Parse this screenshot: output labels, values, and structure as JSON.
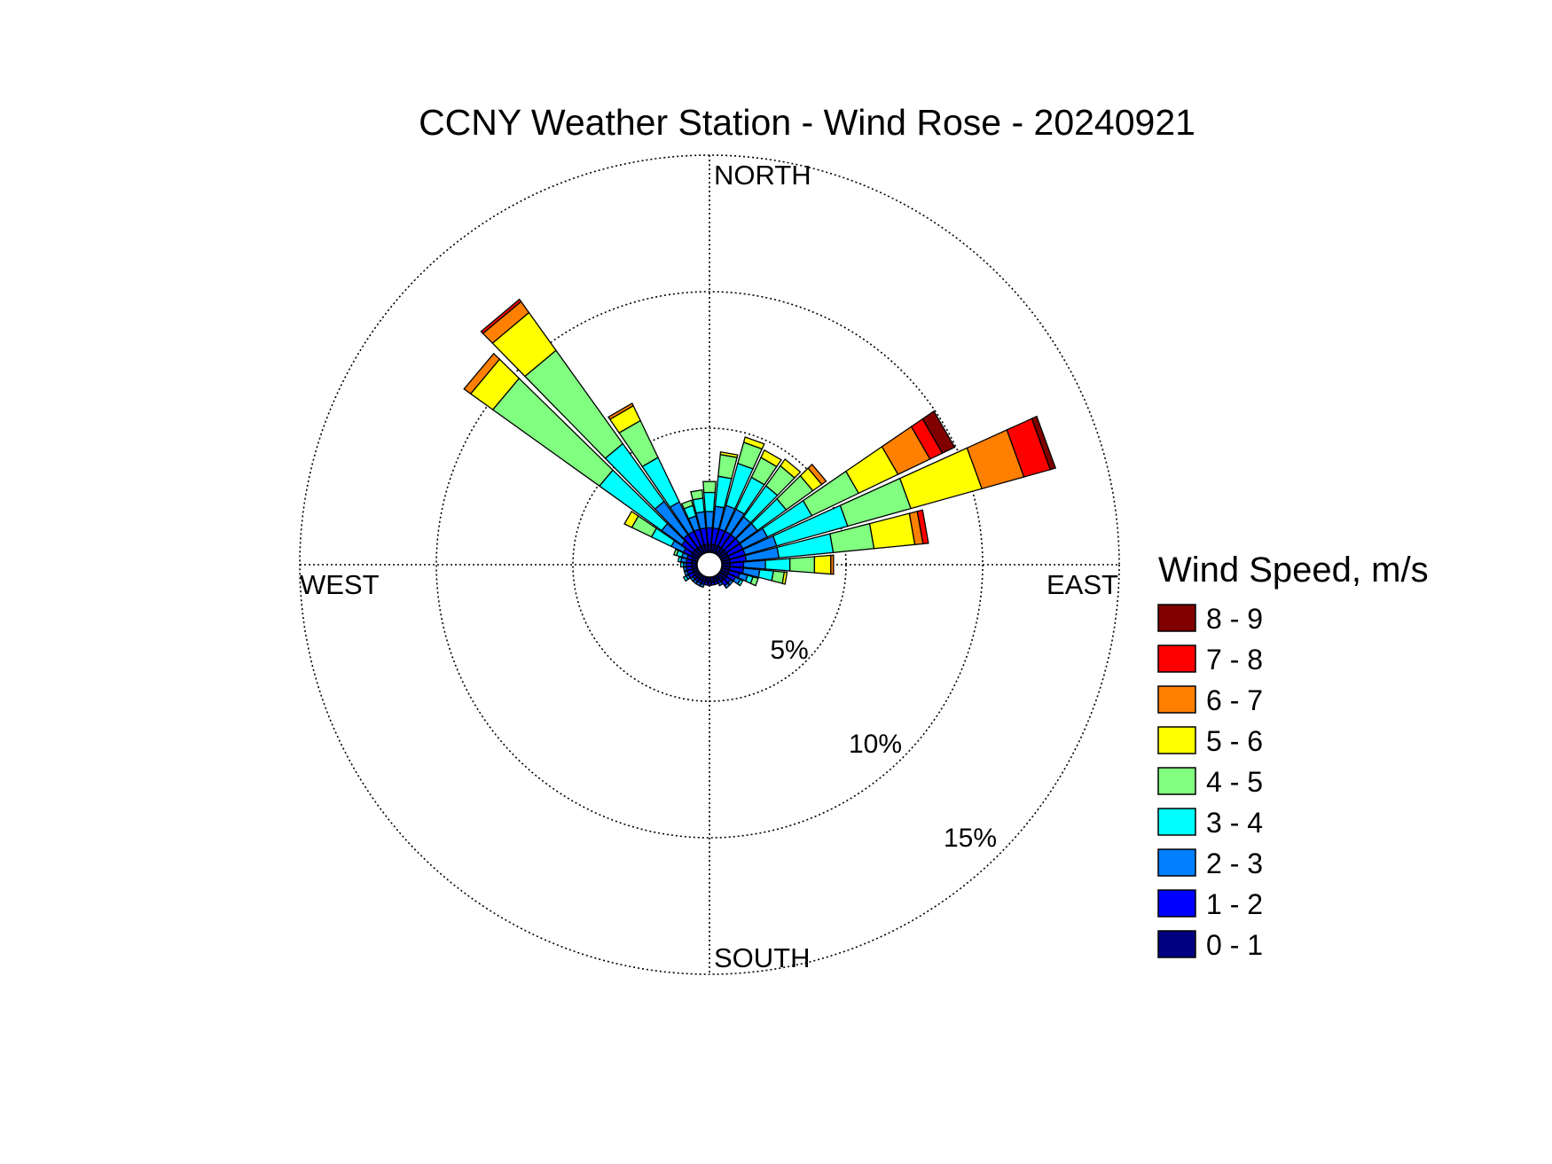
{
  "chart_data": {
    "type": "wind-rose",
    "title": "CCNY Weather Station - Wind Rose - 20240921",
    "directions": [
      "NORTH",
      "EAST",
      "SOUTH",
      "WEST"
    ],
    "ring_labels": [
      "5%",
      "10%",
      "15%"
    ],
    "rings": [
      5,
      10,
      15
    ],
    "rmax": 15,
    "legend": {
      "title": "Wind Speed, m/s",
      "bins": [
        {
          "label": "8 - 9",
          "color": "#800000"
        },
        {
          "label": "7 - 8",
          "color": "#ff0000"
        },
        {
          "label": "6 - 7",
          "color": "#ff8000"
        },
        {
          "label": "5 - 6",
          "color": "#ffff00"
        },
        {
          "label": "4 - 5",
          "color": "#80ff80"
        },
        {
          "label": "3 - 4",
          "color": "#00ffff"
        },
        {
          "label": "2 - 3",
          "color": "#0080ff"
        },
        {
          "label": "1 - 2",
          "color": "#0000ff"
        },
        {
          "label": "0 - 1",
          "color": "#000080"
        }
      ]
    },
    "sectors": [
      {
        "direction_deg": 0,
        "frequencies": [
          0.3,
          0.6,
          0.6,
          0.7,
          0.4,
          0.0,
          0.0,
          0.0,
          0.0
        ]
      },
      {
        "direction_deg": 10,
        "frequencies": [
          0.3,
          0.6,
          0.8,
          1.1,
          0.8,
          0.1,
          0.0,
          0.0,
          0.0
        ]
      },
      {
        "direction_deg": 20,
        "frequencies": [
          0.3,
          0.6,
          0.9,
          1.6,
          0.8,
          0.2,
          0.0,
          0.0,
          0.0
        ]
      },
      {
        "direction_deg": 30,
        "frequencies": [
          0.3,
          0.6,
          0.9,
          1.3,
          0.8,
          0.3,
          0.0,
          0.0,
          0.0
        ]
      },
      {
        "direction_deg": 40,
        "frequencies": [
          0.3,
          0.6,
          0.8,
          1.4,
          0.9,
          0.3,
          0.0,
          0.0,
          0.0
        ]
      },
      {
        "direction_deg": 50,
        "frequencies": [
          0.3,
          0.6,
          0.8,
          1.3,
          1.2,
          0.4,
          0.2,
          0.0,
          0.0
        ]
      },
      {
        "direction_deg": 60,
        "frequencies": [
          0.3,
          0.6,
          1.0,
          1.8,
          1.9,
          1.6,
          1.3,
          0.5,
          0.5
        ]
      },
      {
        "direction_deg": 70,
        "frequencies": [
          0.3,
          0.6,
          1.2,
          2.7,
          2.4,
          2.7,
          1.6,
          1.0,
          0.2
        ]
      },
      {
        "direction_deg": 80,
        "frequencies": [
          0.3,
          0.6,
          1.2,
          2.0,
          1.5,
          1.5,
          0.3,
          0.2,
          0.0
        ]
      },
      {
        "direction_deg": 90,
        "frequencies": [
          0.3,
          0.5,
          0.8,
          0.9,
          0.9,
          0.6,
          0.1,
          0.0,
          0.0
        ]
      },
      {
        "direction_deg": 100,
        "frequencies": [
          0.3,
          0.5,
          0.6,
          0.5,
          0.4,
          0.1,
          0.0,
          0.0,
          0.0
        ]
      },
      {
        "direction_deg": 110,
        "frequencies": [
          0.3,
          0.4,
          0.3,
          0.2,
          0.2,
          0.0,
          0.0,
          0.0,
          0.0
        ]
      },
      {
        "direction_deg": 120,
        "frequencies": [
          0.3,
          0.3,
          0.2,
          0.1,
          0.0,
          0.0,
          0.0,
          0.0,
          0.0
        ]
      },
      {
        "direction_deg": 130,
        "frequencies": [
          0.3,
          0.2,
          0.1,
          0.0,
          0.0,
          0.0,
          0.0,
          0.0,
          0.0
        ]
      },
      {
        "direction_deg": 140,
        "frequencies": [
          0.3,
          0.2,
          0.1,
          0.0,
          0.0,
          0.0,
          0.0,
          0.0,
          0.0
        ]
      },
      {
        "direction_deg": 150,
        "frequencies": [
          0.2,
          0.1,
          0.1,
          0.0,
          0.0,
          0.0,
          0.0,
          0.0,
          0.0
        ]
      },
      {
        "direction_deg": 160,
        "frequencies": [
          0.2,
          0.1,
          0.0,
          0.0,
          0.0,
          0.0,
          0.0,
          0.0,
          0.0
        ]
      },
      {
        "direction_deg": 170,
        "frequencies": [
          0.2,
          0.1,
          0.0,
          0.0,
          0.0,
          0.0,
          0.0,
          0.0,
          0.0
        ]
      },
      {
        "direction_deg": 180,
        "frequencies": [
          0.2,
          0.1,
          0.0,
          0.0,
          0.0,
          0.0,
          0.0,
          0.0,
          0.0
        ]
      },
      {
        "direction_deg": 190,
        "frequencies": [
          0.2,
          0.1,
          0.0,
          0.0,
          0.0,
          0.0,
          0.0,
          0.0,
          0.0
        ]
      },
      {
        "direction_deg": 200,
        "frequencies": [
          0.2,
          0.1,
          0.1,
          0.0,
          0.0,
          0.0,
          0.0,
          0.0,
          0.0
        ]
      },
      {
        "direction_deg": 210,
        "frequencies": [
          0.2,
          0.1,
          0.1,
          0.0,
          0.0,
          0.0,
          0.0,
          0.0,
          0.0
        ]
      },
      {
        "direction_deg": 220,
        "frequencies": [
          0.2,
          0.1,
          0.1,
          0.0,
          0.0,
          0.0,
          0.0,
          0.0,
          0.0
        ]
      },
      {
        "direction_deg": 230,
        "frequencies": [
          0.2,
          0.1,
          0.1,
          0.0,
          0.0,
          0.0,
          0.0,
          0.0,
          0.0
        ]
      },
      {
        "direction_deg": 240,
        "frequencies": [
          0.2,
          0.2,
          0.1,
          0.1,
          0.0,
          0.0,
          0.0,
          0.0,
          0.0
        ]
      },
      {
        "direction_deg": 250,
        "frequencies": [
          0.2,
          0.2,
          0.1,
          0.0,
          0.0,
          0.0,
          0.0,
          0.0,
          0.0
        ]
      },
      {
        "direction_deg": 260,
        "frequencies": [
          0.2,
          0.2,
          0.1,
          0.0,
          0.0,
          0.0,
          0.0,
          0.0,
          0.0
        ]
      },
      {
        "direction_deg": 270,
        "frequencies": [
          0.2,
          0.2,
          0.1,
          0.1,
          0.0,
          0.0,
          0.0,
          0.0,
          0.0
        ]
      },
      {
        "direction_deg": 280,
        "frequencies": [
          0.2,
          0.2,
          0.2,
          0.1,
          0.0,
          0.0,
          0.0,
          0.0,
          0.0
        ]
      },
      {
        "direction_deg": 290,
        "frequencies": [
          0.2,
          0.2,
          0.2,
          0.2,
          0.1,
          0.0,
          0.0,
          0.0,
          0.0
        ]
      },
      {
        "direction_deg": 300,
        "frequencies": [
          0.3,
          0.3,
          0.5,
          0.8,
          0.8,
          0.3,
          0.0,
          0.0,
          0.0
        ]
      },
      {
        "direction_deg": 310,
        "frequencies": [
          0.3,
          0.5,
          0.9,
          2.8,
          4.8,
          1.0,
          0.3,
          0.0,
          0.0
        ]
      },
      {
        "direction_deg": 320,
        "frequencies": [
          0.3,
          0.6,
          1.5,
          2.6,
          4.2,
          1.7,
          0.5,
          0.1,
          0.0
        ]
      },
      {
        "direction_deg": 330,
        "frequencies": [
          0.3,
          0.6,
          1.2,
          1.8,
          1.5,
          0.6,
          0.1,
          0.0,
          0.0
        ]
      },
      {
        "direction_deg": 340,
        "frequencies": [
          0.3,
          0.6,
          0.5,
          0.4,
          0.2,
          0.0,
          0.0,
          0.0,
          0.0
        ]
      },
      {
        "direction_deg": 350,
        "frequencies": [
          0.3,
          0.6,
          0.6,
          0.5,
          0.3,
          0.0,
          0.0,
          0.0,
          0.0
        ]
      }
    ]
  }
}
